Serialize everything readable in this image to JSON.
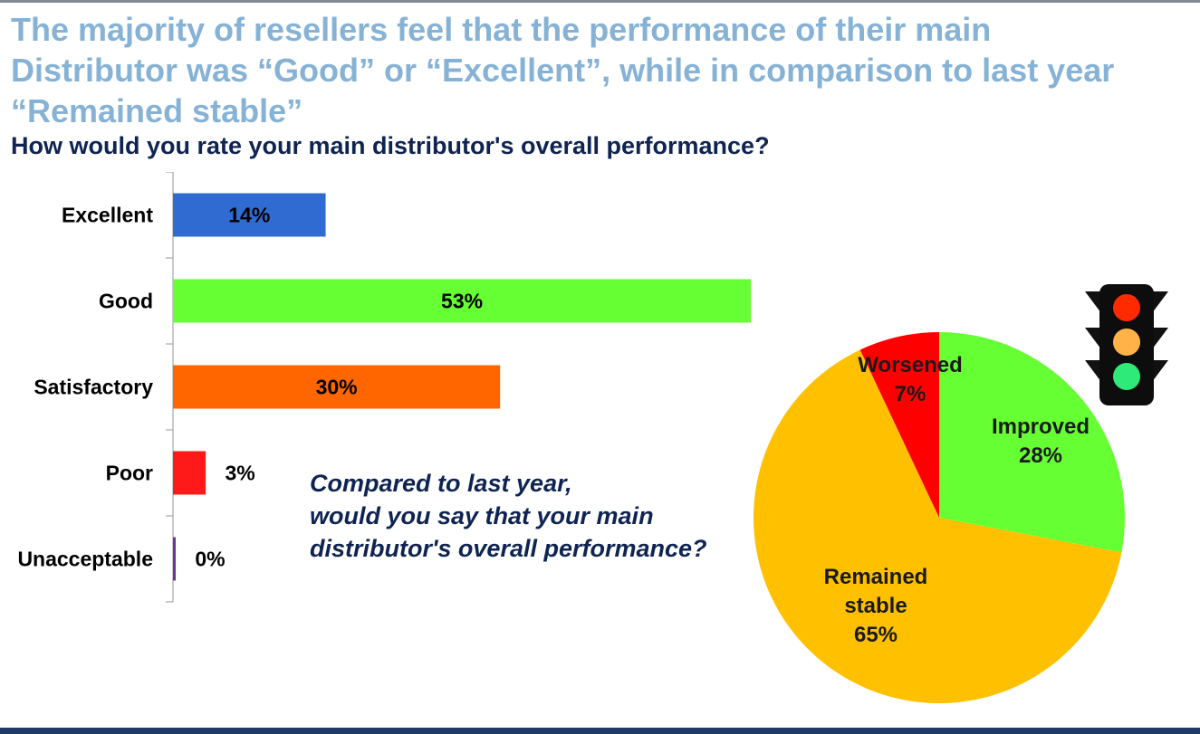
{
  "headline": {
    "lines": [
      "The majority of resellers feel that the performance of their main",
      "Distributor was “Good” or “Excellent”, while in comparison to last year",
      "“Remained stable”"
    ]
  },
  "question": "How would you rate your main distributor's overall performance?",
  "subquestion": {
    "lines": [
      "Compared to last year,",
      "would you say that your main",
      "distributor's overall performance?"
    ]
  },
  "chart_data": [
    {
      "type": "bar",
      "orientation": "horizontal",
      "categories": [
        "Excellent",
        "Good",
        "Satisfactory",
        "Poor",
        "Unacceptable"
      ],
      "values": [
        14,
        53,
        30,
        3,
        0
      ],
      "labels": [
        "14%",
        "53%",
        "30%",
        "3%",
        "0%"
      ],
      "colors": [
        "#2f6bd0",
        "#66ff33",
        "#ff6600",
        "#ff1a1a",
        "#7030a0"
      ],
      "xlim": [
        0,
        100
      ],
      "grid": false,
      "title": "",
      "xlabel": "",
      "ylabel": ""
    },
    {
      "type": "pie",
      "categories": [
        "Improved",
        "Remained stable",
        "Worsened"
      ],
      "values": [
        28,
        65,
        7
      ],
      "labels": [
        [
          "Improved",
          "28%"
        ],
        [
          "Remained",
          "stable",
          "65%"
        ],
        [
          "Worsened",
          "7%"
        ]
      ],
      "colors": [
        "#66ff33",
        "#ffc000",
        "#ff0000"
      ],
      "start_angle_deg": 0,
      "direction": "clockwise"
    }
  ],
  "icons": {
    "traffic_light": {
      "name": "traffic-light-icon",
      "lamp_colors": [
        "#ff2a00",
        "#ffb347",
        "#2eea78"
      ]
    }
  }
}
